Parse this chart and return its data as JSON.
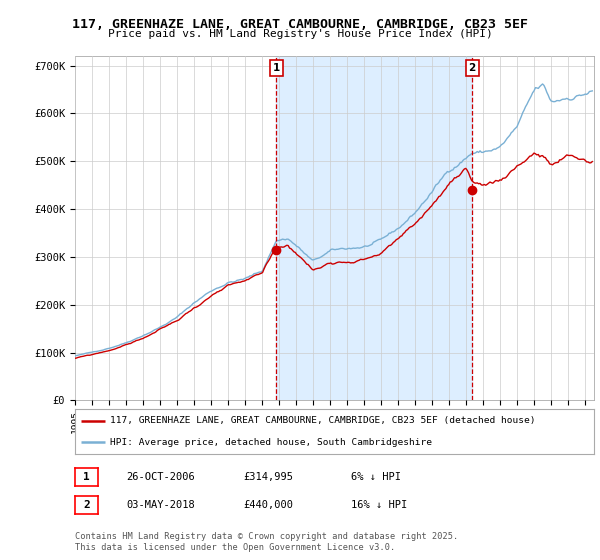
{
  "title": "117, GREENHAZE LANE, GREAT CAMBOURNE, CAMBRIDGE, CB23 5EF",
  "subtitle": "Price paid vs. HM Land Registry's House Price Index (HPI)",
  "ylabel_ticks": [
    "£0",
    "£100K",
    "£200K",
    "£300K",
    "£400K",
    "£500K",
    "£600K",
    "£700K"
  ],
  "ytick_values": [
    0,
    100000,
    200000,
    300000,
    400000,
    500000,
    600000,
    700000
  ],
  "ylim": [
    0,
    720000
  ],
  "xlim_start": 1995.0,
  "xlim_end": 2025.5,
  "red_line_color": "#cc0000",
  "blue_line_color": "#7ab0d4",
  "shade_color": "#ddeeff",
  "marker1_x": 2006.82,
  "marker1_y": 314995,
  "marker1_label": "1",
  "marker2_x": 2018.34,
  "marker2_y": 440000,
  "marker2_label": "2",
  "legend_red": "117, GREENHAZE LANE, GREAT CAMBOURNE, CAMBRIDGE, CB23 5EF (detached house)",
  "legend_blue": "HPI: Average price, detached house, South Cambridgeshire",
  "table_row1": [
    "1",
    "26-OCT-2006",
    "£314,995",
    "6% ↓ HPI"
  ],
  "table_row2": [
    "2",
    "03-MAY-2018",
    "£440,000",
    "16% ↓ HPI"
  ],
  "footer": "Contains HM Land Registry data © Crown copyright and database right 2025.\nThis data is licensed under the Open Government Licence v3.0.",
  "background_color": "#ffffff",
  "grid_color": "#cccccc"
}
